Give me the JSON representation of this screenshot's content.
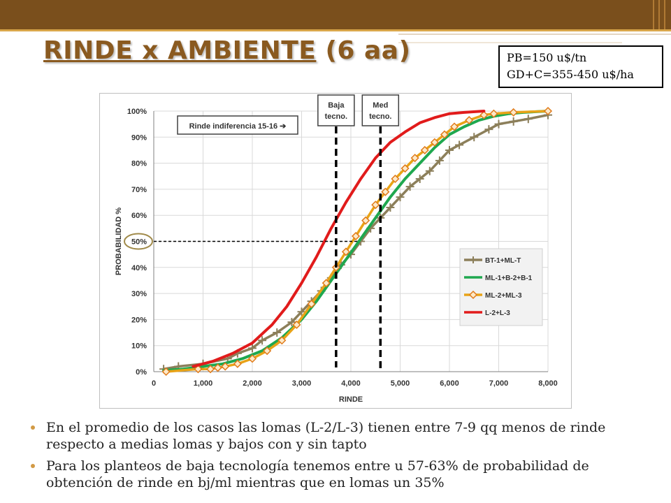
{
  "slide": {
    "title_underlined": "RINDE x AMBIENTE",
    "title_rest": "(6 aa)",
    "price_line1": "PB=150 u$/tn",
    "price_line2": "GD+C=355-450 u$/ha",
    "bullets": [
      "En el promedio de los casos las lomas (L-2/L-3) tienen entre 7-9 qq menos de rinde respecto a medias lomas y bajos con y sin tapto",
      "Para los planteos de baja tecnología tenemos entre u 57-63% de probabilidad de obtención de rinde en bj/ml mientras que en lomas un 35%"
    ],
    "accent_color": "#7a4f1c"
  },
  "chart_data": {
    "type": "line",
    "xlabel": "RINDE",
    "ylabel": "PROBABILIDAD %",
    "xlim": [
      0,
      8000
    ],
    "ylim": [
      0,
      1
    ],
    "xticks": [
      0,
      1000,
      2000,
      3000,
      4000,
      5000,
      6000,
      7000,
      8000
    ],
    "xtick_labels": [
      "0",
      "1,000",
      "2,000",
      "3,000",
      "4,000",
      "5,000",
      "6,000",
      "7,000",
      "8,000"
    ],
    "yticks": [
      0,
      0.1,
      0.2,
      0.3,
      0.4,
      0.5,
      0.6,
      0.7,
      0.8,
      0.9,
      1.0
    ],
    "ytick_labels": [
      "0%",
      "10%",
      "20%",
      "30%",
      "40%",
      "50%",
      "60%",
      "70%",
      "80%",
      "90%",
      "100%"
    ],
    "grid": true,
    "legend_position": "right",
    "series": [
      {
        "name": "BT-1+ML-T",
        "color": "#8c7f5a",
        "marker": "plus",
        "x": [
          200,
          500,
          1000,
          1500,
          1700,
          2000,
          2200,
          2500,
          2800,
          3000,
          3200,
          3400,
          3600,
          3800,
          4000,
          4200,
          4400,
          4600,
          4800,
          5000,
          5200,
          5400,
          5600,
          5800,
          6000,
          6200,
          6500,
          6800,
          7000,
          7300,
          7600,
          8000
        ],
        "y": [
          0.01,
          0.02,
          0.03,
          0.05,
          0.07,
          0.09,
          0.12,
          0.15,
          0.19,
          0.23,
          0.27,
          0.31,
          0.36,
          0.41,
          0.45,
          0.5,
          0.55,
          0.59,
          0.63,
          0.67,
          0.71,
          0.74,
          0.77,
          0.81,
          0.85,
          0.87,
          0.9,
          0.93,
          0.95,
          0.96,
          0.97,
          0.985
        ]
      },
      {
        "name": "ML-1+B-2+B-1",
        "color": "#1fa84f",
        "marker": "none",
        "x": [
          200,
          600,
          1000,
          1400,
          1800,
          2200,
          2600,
          3000,
          3300,
          3600,
          3900,
          4200,
          4500,
          4800,
          5100,
          5400,
          5700,
          6000,
          6300,
          6600,
          6900,
          7200,
          7500,
          8000
        ],
        "y": [
          0.005,
          0.01,
          0.02,
          0.03,
          0.05,
          0.08,
          0.13,
          0.2,
          0.27,
          0.35,
          0.43,
          0.51,
          0.59,
          0.67,
          0.74,
          0.8,
          0.86,
          0.91,
          0.94,
          0.965,
          0.98,
          0.99,
          0.995,
          1.0
        ]
      },
      {
        "name": "ML-2+ML-3",
        "color": "#e8a317",
        "marker": "diamond",
        "x": [
          250,
          900,
          1150,
          1300,
          1450,
          1700,
          2000,
          2300,
          2600,
          2900,
          3200,
          3500,
          3700,
          3900,
          4100,
          4300,
          4500,
          4700,
          4900,
          5100,
          5300,
          5500,
          5700,
          5900,
          6100,
          6400,
          6700,
          6900,
          7300,
          8000
        ],
        "y": [
          0.0,
          0.01,
          0.01,
          0.015,
          0.02,
          0.03,
          0.05,
          0.08,
          0.12,
          0.18,
          0.26,
          0.34,
          0.4,
          0.46,
          0.52,
          0.58,
          0.64,
          0.69,
          0.74,
          0.78,
          0.82,
          0.85,
          0.88,
          0.91,
          0.94,
          0.965,
          0.985,
          0.99,
          0.995,
          1.0
        ]
      },
      {
        "name": "L-2+L-3",
        "color": "#e11b1b",
        "marker": "none",
        "x": [
          800,
          1200,
          1600,
          2000,
          2400,
          2700,
          3000,
          3300,
          3600,
          3900,
          4200,
          4500,
          4800,
          5100,
          5400,
          5700,
          6000,
          6300,
          6700
        ],
        "y": [
          0.02,
          0.04,
          0.07,
          0.11,
          0.18,
          0.25,
          0.34,
          0.44,
          0.55,
          0.65,
          0.74,
          0.82,
          0.88,
          0.92,
          0.955,
          0.975,
          0.99,
          0.995,
          1.0
        ]
      }
    ],
    "annotations": {
      "indiferencia_label": "Rinde indiferencia 15-16 ➔",
      "baja_label_1": "Baja",
      "baja_label_2": "tecno.",
      "baja_x": 3700,
      "med_label_1": "Med",
      "med_label_2": "tecno.",
      "med_x": 4600,
      "half_line_y": 0.5
    }
  }
}
